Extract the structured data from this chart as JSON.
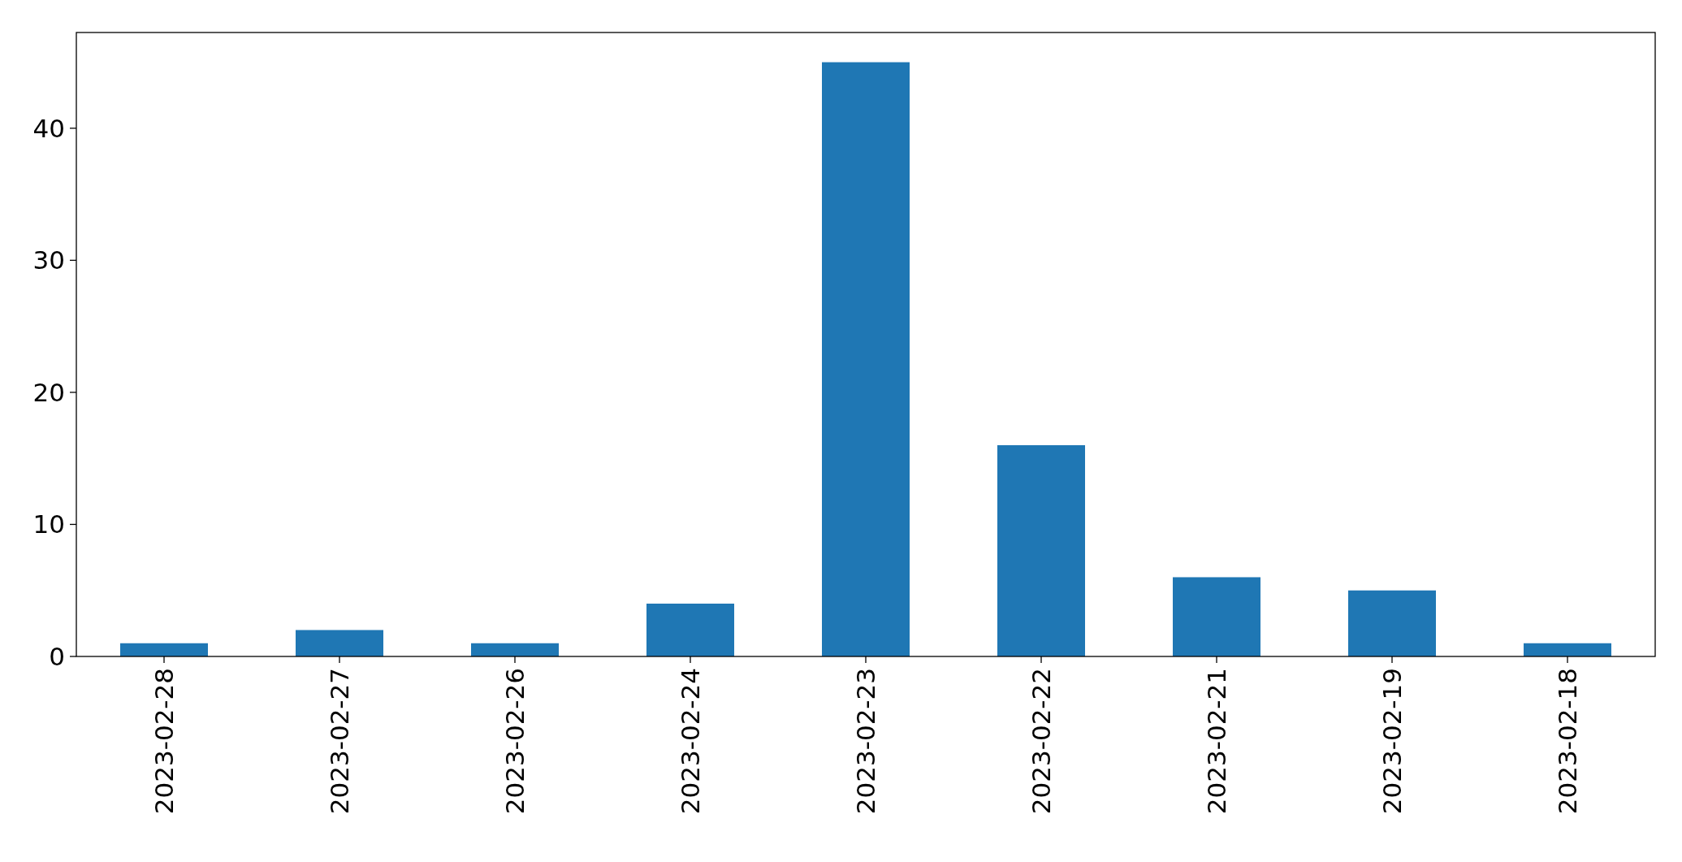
{
  "chart_data": {
    "type": "bar",
    "categories": [
      "2023-02-28",
      "2023-02-27",
      "2023-02-26",
      "2023-02-24",
      "2023-02-23",
      "2023-02-22",
      "2023-02-21",
      "2023-02-19",
      "2023-02-18"
    ],
    "values": [
      1,
      2,
      1,
      4,
      45,
      16,
      6,
      5,
      1
    ],
    "color": "#1f77b4",
    "ylim": [
      0,
      47.25
    ],
    "yticks": [
      0,
      10,
      20,
      30,
      40
    ],
    "grid": false
  }
}
